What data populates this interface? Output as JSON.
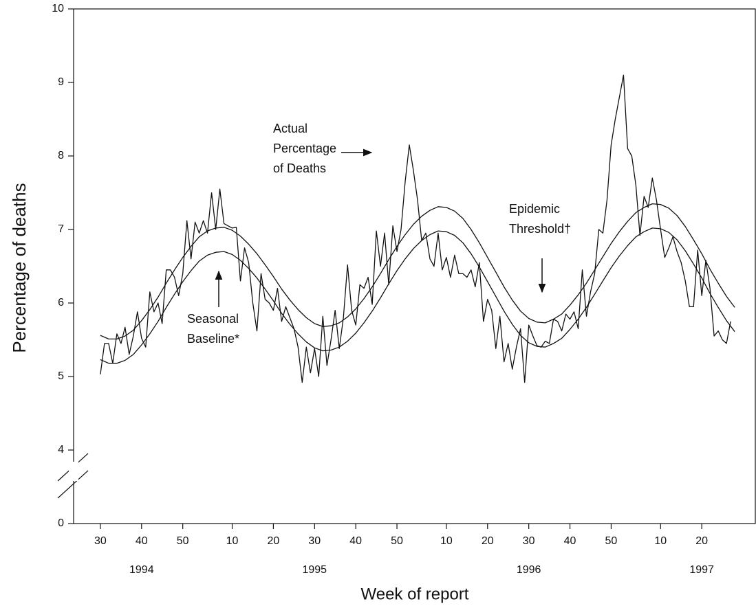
{
  "chart_data": {
    "type": "line",
    "y_label": "Percentage of deaths",
    "x_label": "Week of report",
    "xlim": [
      -6.5,
      159
    ],
    "xticks": [
      {
        "value": 0,
        "label": "30"
      },
      {
        "value": 10,
        "label": "40"
      },
      {
        "value": 20,
        "label": "50"
      },
      {
        "value": 32,
        "label": "10"
      },
      {
        "value": 42,
        "label": "20"
      },
      {
        "value": 52,
        "label": "30"
      },
      {
        "value": 62,
        "label": "40"
      },
      {
        "value": 72,
        "label": "50"
      },
      {
        "value": 84,
        "label": "10"
      },
      {
        "value": 94,
        "label": "20"
      },
      {
        "value": 104,
        "label": "30"
      },
      {
        "value": 114,
        "label": "40"
      },
      {
        "value": 124,
        "label": "50"
      },
      {
        "value": 136,
        "label": "10"
      },
      {
        "value": 146,
        "label": "20"
      }
    ],
    "year_ticks": [
      {
        "value": 10,
        "label": "1994"
      },
      {
        "value": 52,
        "label": "1995"
      },
      {
        "value": 104,
        "label": "1996"
      },
      {
        "value": 146,
        "label": "1997"
      }
    ],
    "ylim": [
      0,
      10
    ],
    "y_break": [
      0,
      4
    ],
    "yticks": [
      0,
      4,
      5,
      6,
      7,
      8,
      9,
      10
    ],
    "annotations": [
      {
        "lines": [
          "Actual",
          "Percentage",
          "of Deaths"
        ]
      },
      {
        "lines": [
          "Epidemic",
          "Threshold†"
        ]
      },
      {
        "lines": [
          "Seasonal",
          "Baseline*"
        ]
      }
    ],
    "series": [
      {
        "name": "Actual Percentage of Deaths",
        "color": "#111111",
        "x": [
          0,
          1,
          2,
          3,
          4,
          5,
          6,
          7,
          8,
          9,
          10,
          11,
          12,
          13,
          14,
          15,
          16,
          17,
          18,
          19,
          20,
          21,
          22,
          23,
          24,
          25,
          26,
          27,
          28,
          29,
          30,
          31,
          32,
          33,
          34,
          35,
          36,
          37,
          38,
          39,
          40,
          41,
          42,
          43,
          44,
          45,
          46,
          47,
          48,
          49,
          50,
          51,
          52,
          53,
          54,
          55,
          56,
          57,
          58,
          59,
          60,
          61,
          62,
          63,
          64,
          65,
          66,
          67,
          68,
          69,
          70,
          71,
          72,
          73,
          74,
          75,
          76,
          77,
          78,
          79,
          80,
          81,
          82,
          83,
          84,
          85,
          86,
          87,
          88,
          89,
          90,
          91,
          92,
          93,
          94,
          95,
          96,
          97,
          98,
          99,
          100,
          101,
          102,
          103,
          104,
          105,
          106,
          107,
          108,
          109,
          110,
          111,
          112,
          113,
          114,
          115,
          116,
          117,
          118,
          119,
          120,
          121,
          122,
          123,
          124,
          125,
          126,
          127,
          128,
          129,
          130,
          131,
          132,
          133,
          134,
          135,
          136,
          137,
          138,
          139,
          140,
          141,
          142,
          143,
          144,
          145,
          146,
          147,
          148,
          149,
          150,
          151,
          152,
          153
        ],
        "values": [
          5.03,
          5.45,
          5.45,
          5.18,
          5.58,
          5.45,
          5.67,
          5.3,
          5.55,
          5.88,
          5.52,
          5.4,
          6.15,
          5.88,
          6.0,
          5.72,
          6.45,
          6.45,
          6.35,
          6.1,
          6.4,
          7.12,
          6.6,
          7.1,
          6.95,
          7.12,
          6.95,
          7.5,
          7.0,
          7.55,
          7.08,
          7.05,
          7.02,
          7.03,
          6.3,
          6.75,
          6.55,
          6.0,
          5.62,
          6.4,
          6.05,
          6.0,
          5.9,
          6.2,
          5.75,
          5.95,
          5.8,
          5.65,
          5.4,
          4.92,
          5.4,
          5.05,
          5.38,
          5.0,
          5.82,
          5.15,
          5.5,
          5.9,
          5.38,
          5.8,
          6.52,
          5.9,
          5.7,
          6.25,
          6.2,
          6.35,
          5.98,
          6.98,
          6.5,
          6.95,
          6.25,
          7.05,
          6.7,
          7.0,
          7.65,
          8.15,
          7.8,
          7.4,
          6.85,
          6.95,
          6.6,
          6.5,
          6.95,
          6.45,
          6.62,
          6.35,
          6.65,
          6.4,
          6.4,
          6.35,
          6.45,
          6.22,
          6.55,
          5.75,
          6.05,
          5.9,
          5.38,
          5.82,
          5.2,
          5.45,
          5.1,
          5.4,
          5.65,
          4.92,
          5.7,
          5.55,
          5.42,
          5.4,
          5.48,
          5.45,
          5.78,
          5.75,
          5.62,
          5.85,
          5.78,
          5.88,
          5.65,
          6.45,
          5.82,
          6.15,
          6.4,
          7.0,
          6.95,
          7.4,
          8.15,
          8.5,
          8.8,
          9.1,
          8.1,
          8.0,
          7.6,
          6.92,
          7.45,
          7.3,
          7.7,
          7.4,
          7.0,
          6.62,
          6.75,
          6.9,
          6.7,
          6.55,
          6.3,
          5.95,
          5.95,
          6.72,
          6.1,
          6.58,
          6.2,
          5.55,
          5.62,
          5.5,
          5.45,
          5.75
        ]
      },
      {
        "name": "Seasonal Baseline",
        "color": "#111111",
        "x": [
          0,
          2,
          4,
          6,
          8,
          10,
          12,
          14,
          16,
          18,
          20,
          22,
          24,
          26,
          28,
          30,
          32,
          34,
          36,
          38,
          40,
          42,
          44,
          46,
          48,
          50,
          52,
          54,
          56,
          58,
          60,
          62,
          64,
          66,
          68,
          70,
          72,
          74,
          76,
          78,
          80,
          82,
          84,
          86,
          88,
          90,
          92,
          94,
          96,
          98,
          100,
          102,
          104,
          106,
          108,
          110,
          112,
          114,
          116,
          118,
          120,
          122,
          124,
          126,
          128,
          130,
          132,
          134,
          136,
          138,
          140,
          142,
          144,
          146,
          148,
          150,
          152,
          154
        ],
        "values": [
          5.23,
          5.18,
          5.18,
          5.22,
          5.3,
          5.43,
          5.58,
          5.75,
          5.94,
          6.12,
          6.29,
          6.44,
          6.57,
          6.65,
          6.69,
          6.7,
          6.66,
          6.58,
          6.47,
          6.34,
          6.19,
          6.03,
          5.86,
          5.71,
          5.58,
          5.47,
          5.39,
          5.35,
          5.36,
          5.4,
          5.48,
          5.59,
          5.73,
          5.89,
          6.07,
          6.26,
          6.44,
          6.6,
          6.74,
          6.85,
          6.93,
          6.98,
          6.97,
          6.92,
          6.82,
          6.67,
          6.49,
          6.29,
          6.09,
          5.89,
          5.71,
          5.56,
          5.46,
          5.41,
          5.4,
          5.45,
          5.52,
          5.64,
          5.78,
          5.94,
          6.12,
          6.3,
          6.48,
          6.64,
          6.78,
          6.9,
          6.97,
          7.02,
          7.01,
          6.96,
          6.86,
          6.71,
          6.53,
          6.34,
          6.13,
          5.94,
          5.76,
          5.61
        ]
      },
      {
        "name": "Epidemic Threshold",
        "color": "#111111",
        "x": [
          0,
          2,
          4,
          6,
          8,
          10,
          12,
          14,
          16,
          18,
          20,
          22,
          24,
          26,
          28,
          30,
          32,
          34,
          36,
          38,
          40,
          42,
          44,
          46,
          48,
          50,
          52,
          54,
          56,
          58,
          60,
          62,
          64,
          66,
          68,
          70,
          72,
          74,
          76,
          78,
          80,
          82,
          84,
          86,
          88,
          90,
          92,
          94,
          96,
          98,
          100,
          102,
          104,
          106,
          108,
          110,
          112,
          114,
          116,
          118,
          120,
          122,
          124,
          126,
          128,
          130,
          132,
          134,
          136,
          138,
          140,
          142,
          144,
          146,
          148,
          150,
          152,
          154
        ],
        "values": [
          5.56,
          5.51,
          5.51,
          5.55,
          5.63,
          5.76,
          5.91,
          6.08,
          6.27,
          6.45,
          6.62,
          6.77,
          6.9,
          6.98,
          7.02,
          7.03,
          6.99,
          6.91,
          6.8,
          6.67,
          6.52,
          6.36,
          6.19,
          6.04,
          5.91,
          5.8,
          5.72,
          5.68,
          5.69,
          5.73,
          5.81,
          5.92,
          6.06,
          6.22,
          6.4,
          6.59,
          6.77,
          6.93,
          7.07,
          7.18,
          7.26,
          7.31,
          7.3,
          7.25,
          7.15,
          7.0,
          6.82,
          6.62,
          6.42,
          6.22,
          6.04,
          5.89,
          5.79,
          5.74,
          5.73,
          5.78,
          5.85,
          5.97,
          6.11,
          6.27,
          6.45,
          6.63,
          6.81,
          6.97,
          7.11,
          7.23,
          7.3,
          7.35,
          7.34,
          7.29,
          7.19,
          7.04,
          6.86,
          6.67,
          6.46,
          6.27,
          6.09,
          5.94
        ]
      }
    ]
  }
}
